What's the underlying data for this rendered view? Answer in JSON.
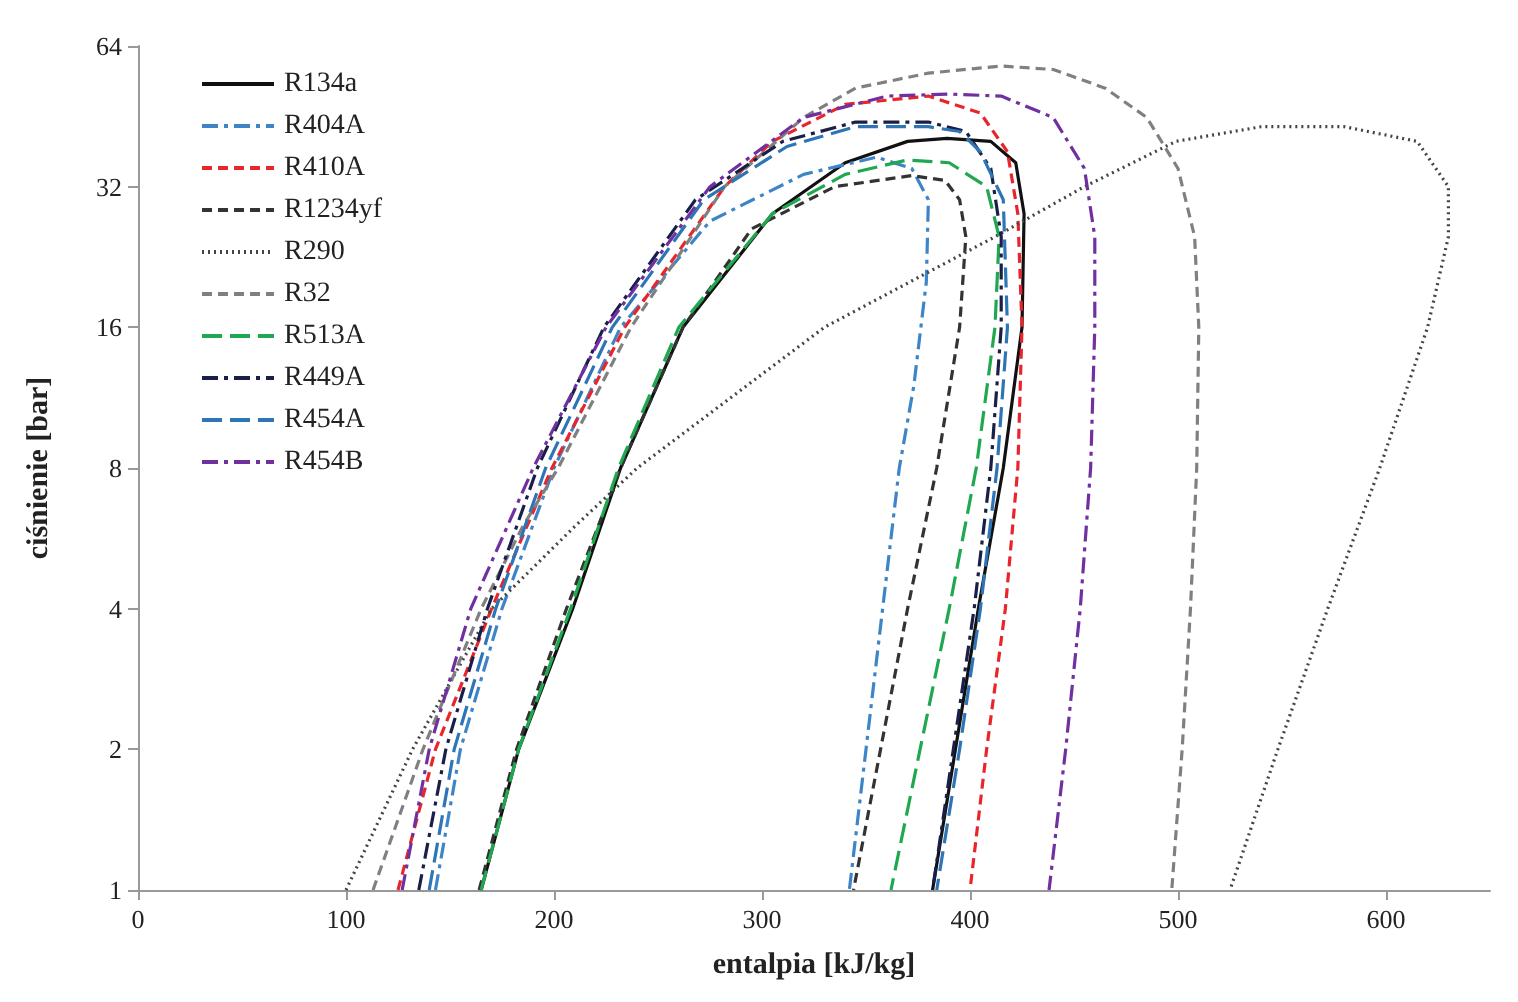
{
  "chart_data": {
    "type": "line",
    "xlabel": "entalpia [kJ/kg]",
    "ylabel": "ciśnienie [bar]",
    "xlim": [
      0,
      650
    ],
    "xticks": [
      0,
      100,
      200,
      300,
      400,
      500,
      600
    ],
    "ylim": [
      1,
      64
    ],
    "yticks": [
      1,
      2,
      4,
      8,
      16,
      32,
      64
    ],
    "log": "y",
    "grid": false,
    "legend": "top left",
    "marker": "none",
    "series": [
      {
        "name": "R134a",
        "color": "#111111",
        "line_style": "solid",
        "x": [
          165,
          183,
          209,
          232,
          262,
          305,
          340,
          370,
          389,
          410,
          422,
          426,
          425,
          416,
          404,
          393,
          382
        ],
        "values": [
          1,
          2,
          4,
          8,
          16,
          28,
          36,
          40,
          40.6,
          40,
          36,
          28,
          16,
          8,
          4,
          2,
          1
        ]
      },
      {
        "name": "R404A",
        "color": "#3d85c6",
        "line_style": "dashdot",
        "x": [
          143,
          155,
          175,
          200,
          232,
          275,
          320,
          355,
          372,
          380,
          379,
          373,
          366,
          358,
          350,
          342
        ],
        "values": [
          1,
          2,
          4,
          8,
          16,
          27,
          34,
          37,
          35,
          30,
          20,
          12,
          8,
          4,
          2,
          1
        ]
      },
      {
        "name": "R410A",
        "color": "#e8262a",
        "line_style": "dashed",
        "x": [
          125,
          143,
          170,
          199,
          234,
          282,
          305,
          340,
          380,
          405,
          418,
          423,
          425,
          423,
          417,
          408,
          400
        ],
        "values": [
          1,
          2,
          4,
          8,
          16,
          32,
          40,
          48,
          50,
          46,
          38,
          28,
          16,
          8,
          4,
          2,
          1
        ]
      },
      {
        "name": "R1234yf",
        "color": "#333333",
        "line_style": "dashed",
        "x": [
          164,
          182,
          206,
          232,
          262,
          295,
          335,
          372,
          388,
          395,
          398,
          395,
          384,
          370,
          357,
          344
        ],
        "values": [
          1,
          2,
          4,
          8,
          16,
          26,
          32,
          33.8,
          33,
          30,
          25,
          16,
          8,
          4,
          2,
          1
        ]
      },
      {
        "name": "R290",
        "color": "#444444",
        "line_style": "dotted",
        "x": [
          100,
          132,
          170,
          210,
          240,
          330,
          412,
          455,
          499,
          540,
          580,
          615,
          630,
          630,
          620,
          597,
          572,
          548,
          525
        ],
        "values": [
          1,
          2,
          4,
          6,
          8,
          16,
          25,
          32,
          40,
          43,
          43,
          40,
          32,
          25,
          16,
          8,
          4,
          2,
          1
        ]
      },
      {
        "name": "R32",
        "color": "#808080",
        "line_style": "dashed",
        "x": [
          113,
          137,
          165,
          185,
          202,
          237,
          282,
          320,
          345,
          380,
          415,
          440,
          465,
          485,
          500,
          508,
          510,
          509,
          506,
          502,
          497
        ],
        "values": [
          1,
          2,
          4,
          6,
          8,
          16,
          32,
          45,
          52,
          56,
          58,
          57,
          52,
          45,
          35,
          25,
          16,
          8,
          4,
          2,
          1
        ]
      },
      {
        "name": "R513A",
        "color": "#1fa84f",
        "line_style": "longdash",
        "x": [
          165,
          183,
          208,
          231,
          260,
          305,
          340,
          370,
          390,
          408,
          414,
          412,
          403,
          390,
          376,
          362
        ],
        "values": [
          1,
          2,
          4,
          8,
          16,
          28,
          34,
          36.5,
          36,
          32,
          25,
          16,
          8,
          4,
          2,
          1
        ]
      },
      {
        "name": "R449A",
        "color": "#1a1f4a",
        "line_style": "dashdot",
        "x": [
          135,
          148,
          168,
          192,
          224,
          268,
          310,
          345,
          380,
          398,
          410,
          415,
          415,
          410,
          402,
          392,
          382
        ],
        "values": [
          1,
          2,
          4,
          8,
          16,
          30,
          40,
          44,
          44,
          42,
          35,
          25,
          16,
          8,
          4,
          2,
          1
        ]
      },
      {
        "name": "R454A",
        "color": "#2e75b6",
        "line_style": "longdash",
        "x": [
          140,
          152,
          172,
          196,
          228,
          272,
          312,
          345,
          380,
          395,
          405,
          416,
          418,
          413,
          405,
          395,
          384
        ],
        "values": [
          1,
          2,
          4,
          8,
          16,
          30,
          39,
          43,
          43,
          42,
          38,
          30,
          16,
          8,
          4,
          2,
          1
        ]
      },
      {
        "name": "R454B",
        "color": "#7030a0",
        "line_style": "dashdot",
        "x": [
          127,
          140,
          160,
          190,
          225,
          275,
          320,
          360,
          390,
          415,
          440,
          455,
          460,
          460,
          458,
          453,
          446,
          438
        ],
        "values": [
          1,
          2,
          4,
          8,
          16,
          32,
          45,
          50,
          50.5,
          50,
          45,
          35,
          25,
          16,
          8,
          4,
          2,
          1
        ]
      }
    ]
  }
}
